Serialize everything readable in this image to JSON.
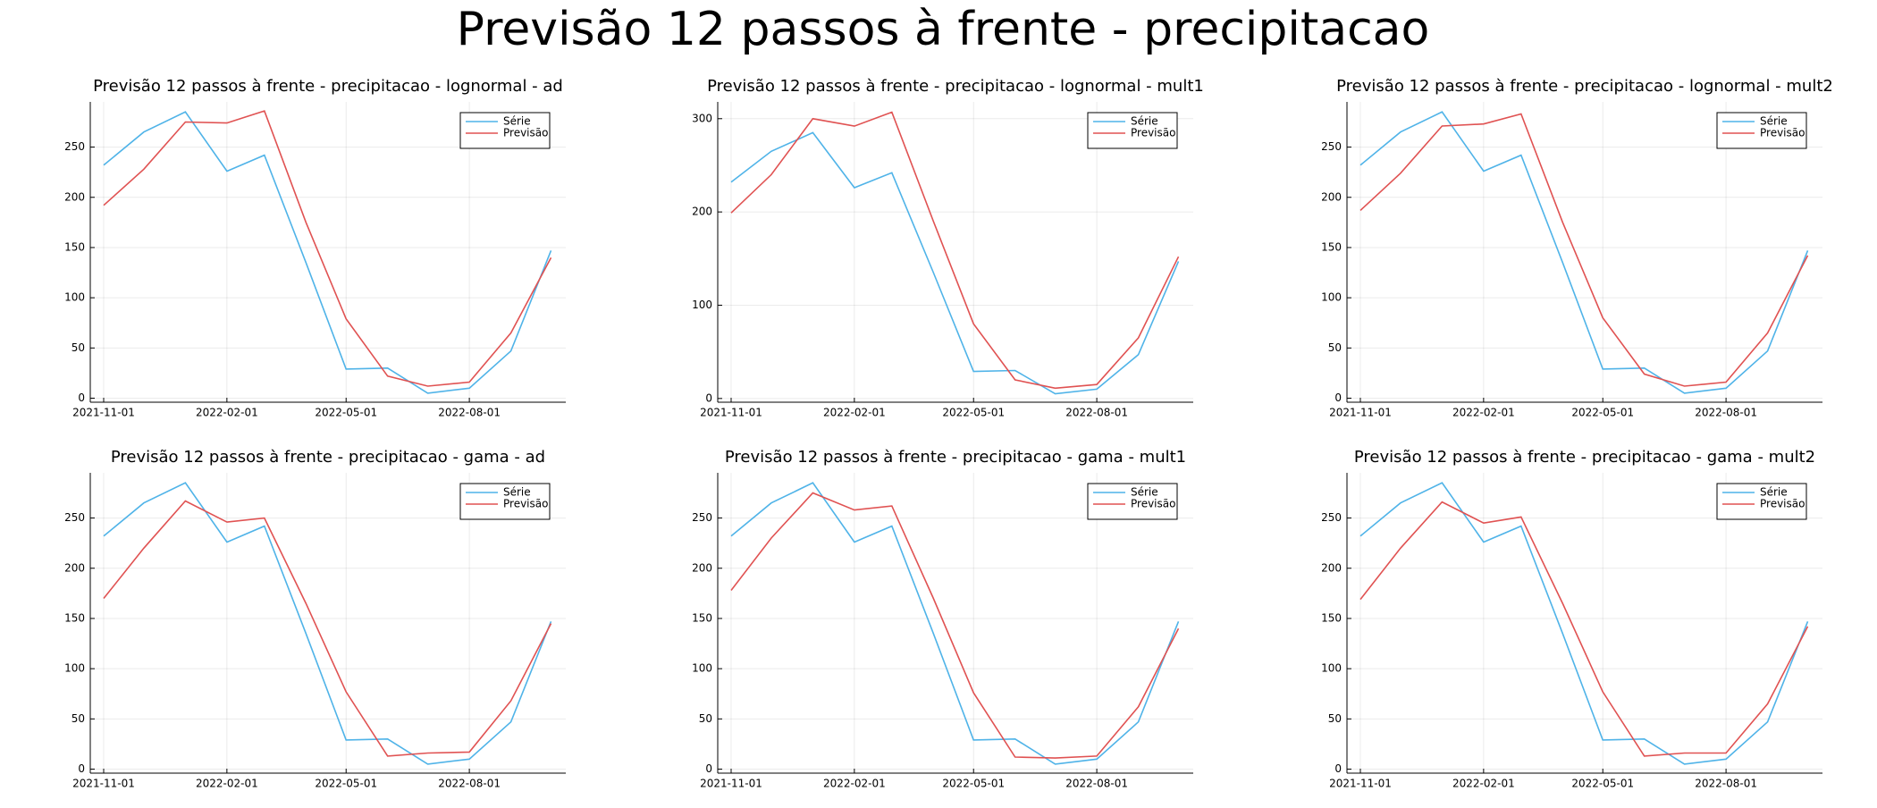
{
  "title": "Previsão 12 passos à frente - precipitacao",
  "chart_data": [
    {
      "type": "line",
      "title": "Previsão 12 passos à frente - precipitacao - lognormal - ad",
      "x": [
        "2021-11-01",
        "2021-12-01",
        "2022-01-01",
        "2022-02-01",
        "2022-03-01",
        "2022-04-01",
        "2022-05-01",
        "2022-06-01",
        "2022-07-01",
        "2022-08-01",
        "2022-09-01",
        "2022-10-01"
      ],
      "series": [
        {
          "name": "Série",
          "color": "#4fb3e8",
          "values": [
            232,
            265,
            285,
            226,
            242,
            135,
            29,
            30,
            5,
            10,
            47,
            147
          ]
        },
        {
          "name": "Previsão",
          "color": "#e05252",
          "values": [
            192,
            228,
            275,
            274,
            286,
            175,
            79,
            22,
            12,
            16,
            65,
            140
          ]
        }
      ],
      "xlim": [
        "2021-10-22",
        "2022-10-12"
      ],
      "xticks": [
        "2021-11-01",
        "2022-02-01",
        "2022-05-01",
        "2022-08-01"
      ],
      "ylim": [
        -4,
        295
      ],
      "yticks": [
        0,
        50,
        100,
        150,
        200,
        250
      ],
      "grid": true,
      "legend": "top-right"
    },
    {
      "type": "line",
      "title": "Previsão 12 passos à frente - precipitacao - lognormal - mult1",
      "x": [
        "2021-11-01",
        "2021-12-01",
        "2022-01-01",
        "2022-02-01",
        "2022-03-01",
        "2022-04-01",
        "2022-05-01",
        "2022-06-01",
        "2022-07-01",
        "2022-08-01",
        "2022-09-01",
        "2022-10-01"
      ],
      "series": [
        {
          "name": "Série",
          "color": "#4fb3e8",
          "values": [
            232,
            265,
            285,
            226,
            242,
            135,
            29,
            30,
            5,
            10,
            47,
            147
          ]
        },
        {
          "name": "Previsão",
          "color": "#e05252",
          "values": [
            199,
            240,
            300,
            292,
            307,
            190,
            80,
            20,
            11,
            15,
            65,
            152
          ]
        }
      ],
      "xlim": [
        "2021-10-22",
        "2022-10-12"
      ],
      "xticks": [
        "2021-11-01",
        "2022-02-01",
        "2022-05-01",
        "2022-08-01"
      ],
      "ylim": [
        -4,
        318
      ],
      "yticks": [
        0,
        100,
        200,
        300
      ],
      "grid": true,
      "legend": "top-right"
    },
    {
      "type": "line",
      "title": "Previsão 12 passos à frente - precipitacao - lognormal - mult2",
      "x": [
        "2021-11-01",
        "2021-12-01",
        "2022-01-01",
        "2022-02-01",
        "2022-03-01",
        "2022-04-01",
        "2022-05-01",
        "2022-06-01",
        "2022-07-01",
        "2022-08-01",
        "2022-09-01",
        "2022-10-01"
      ],
      "series": [
        {
          "name": "Série",
          "color": "#4fb3e8",
          "values": [
            232,
            265,
            285,
            226,
            242,
            135,
            29,
            30,
            5,
            10,
            47,
            147
          ]
        },
        {
          "name": "Previsão",
          "color": "#e05252",
          "values": [
            187,
            224,
            271,
            273,
            283,
            175,
            80,
            24,
            12,
            16,
            65,
            142
          ]
        }
      ],
      "xlim": [
        "2021-10-22",
        "2022-10-12"
      ],
      "xticks": [
        "2021-11-01",
        "2022-02-01",
        "2022-05-01",
        "2022-08-01"
      ],
      "ylim": [
        -4,
        295
      ],
      "yticks": [
        0,
        50,
        100,
        150,
        200,
        250
      ],
      "grid": true,
      "legend": "top-right"
    },
    {
      "type": "line",
      "title": "Previsão 12 passos à frente - precipitacao - gama - ad",
      "x": [
        "2021-11-01",
        "2021-12-01",
        "2022-01-01",
        "2022-02-01",
        "2022-03-01",
        "2022-04-01",
        "2022-05-01",
        "2022-06-01",
        "2022-07-01",
        "2022-08-01",
        "2022-09-01",
        "2022-10-01"
      ],
      "series": [
        {
          "name": "Série",
          "color": "#4fb3e8",
          "values": [
            232,
            265,
            285,
            226,
            242,
            135,
            29,
            30,
            5,
            10,
            47,
            147
          ]
        },
        {
          "name": "Previsão",
          "color": "#e05252",
          "values": [
            170,
            220,
            267,
            246,
            250,
            165,
            77,
            13,
            16,
            17,
            68,
            145
          ]
        }
      ],
      "xlim": [
        "2021-10-22",
        "2022-10-12"
      ],
      "xticks": [
        "2021-11-01",
        "2022-02-01",
        "2022-05-01",
        "2022-08-01"
      ],
      "ylim": [
        -4,
        295
      ],
      "yticks": [
        0,
        50,
        100,
        150,
        200,
        250
      ],
      "grid": true,
      "legend": "top-right"
    },
    {
      "type": "line",
      "title": "Previsão 12 passos à frente - precipitacao - gama - mult1",
      "x": [
        "2021-11-01",
        "2021-12-01",
        "2022-01-01",
        "2022-02-01",
        "2022-03-01",
        "2022-04-01",
        "2022-05-01",
        "2022-06-01",
        "2022-07-01",
        "2022-08-01",
        "2022-09-01",
        "2022-10-01"
      ],
      "series": [
        {
          "name": "Série",
          "color": "#4fb3e8",
          "values": [
            232,
            265,
            285,
            226,
            242,
            135,
            29,
            30,
            5,
            10,
            47,
            147
          ]
        },
        {
          "name": "Previsão",
          "color": "#e05252",
          "values": [
            178,
            230,
            275,
            258,
            262,
            170,
            76,
            12,
            11,
            13,
            62,
            140
          ]
        }
      ],
      "xlim": [
        "2021-10-22",
        "2022-10-12"
      ],
      "xticks": [
        "2021-11-01",
        "2022-02-01",
        "2022-05-01",
        "2022-08-01"
      ],
      "ylim": [
        -4,
        295
      ],
      "yticks": [
        0,
        50,
        100,
        150,
        200,
        250
      ],
      "grid": true,
      "legend": "top-right"
    },
    {
      "type": "line",
      "title": "Previsão 12 passos à frente - precipitacao - gama - mult2",
      "x": [
        "2021-11-01",
        "2021-12-01",
        "2022-01-01",
        "2022-02-01",
        "2022-03-01",
        "2022-04-01",
        "2022-05-01",
        "2022-06-01",
        "2022-07-01",
        "2022-08-01",
        "2022-09-01",
        "2022-10-01"
      ],
      "series": [
        {
          "name": "Série",
          "color": "#4fb3e8",
          "values": [
            232,
            265,
            285,
            226,
            242,
            135,
            29,
            30,
            5,
            10,
            47,
            147
          ]
        },
        {
          "name": "Previsão",
          "color": "#e05252",
          "values": [
            169,
            220,
            266,
            245,
            251,
            165,
            77,
            13,
            16,
            16,
            65,
            142
          ]
        }
      ],
      "xlim": [
        "2021-10-22",
        "2022-10-12"
      ],
      "xticks": [
        "2021-11-01",
        "2022-02-01",
        "2022-05-01",
        "2022-08-01"
      ],
      "ylim": [
        -4,
        295
      ],
      "yticks": [
        0,
        50,
        100,
        150,
        200,
        250
      ],
      "grid": true,
      "legend": "top-right"
    }
  ]
}
